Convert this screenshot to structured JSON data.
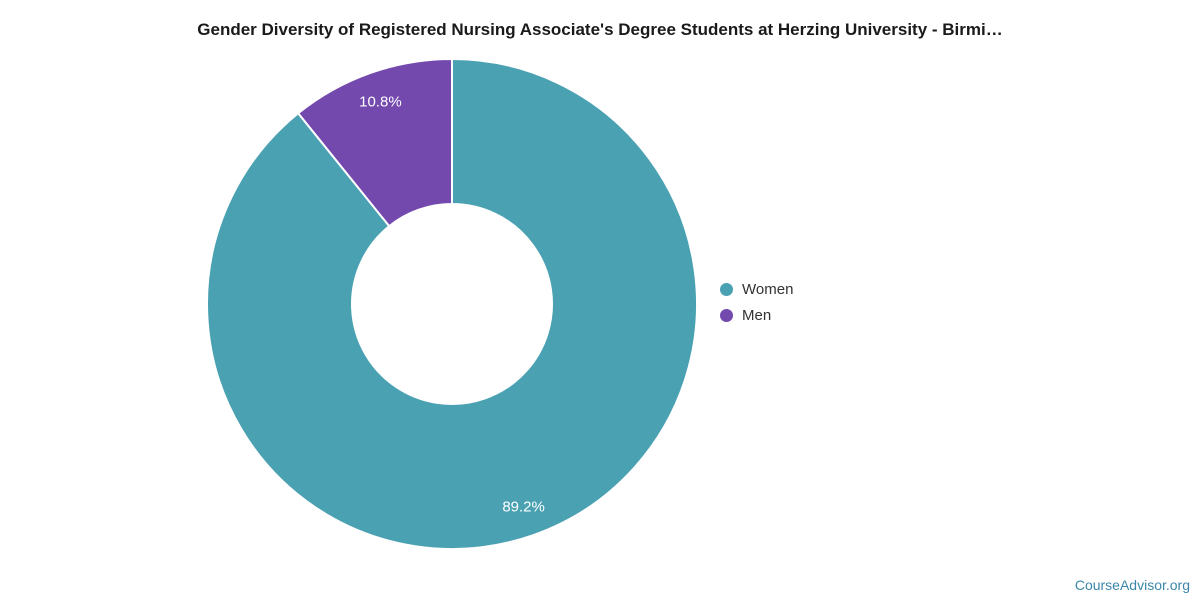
{
  "chart_data": {
    "type": "pie",
    "subtype": "donut",
    "title": "Gender Diversity of Registered Nursing Associate's Degree Students at Herzing University - Birmi…",
    "labels": [
      "Women",
      "Men"
    ],
    "values": [
      89.2,
      10.8
    ],
    "value_labels": [
      "89.2%",
      "10.8%"
    ],
    "colors": [
      "#4AA1B2",
      "#7349AE"
    ],
    "slice_label_color": "#ffffff",
    "start_angle_deg": 0,
    "direction": "clockwise",
    "inner_radius_ratio": 0.41,
    "legend_position": "right-middle",
    "legend_text_color": "#333333"
  },
  "legend": {
    "items": [
      {
        "label": "Women",
        "color": "#4AA1B2"
      },
      {
        "label": "Men",
        "color": "#7349AE"
      }
    ]
  },
  "watermark": {
    "text": "CourseAdvisor.org",
    "color": "#3C87A8"
  }
}
